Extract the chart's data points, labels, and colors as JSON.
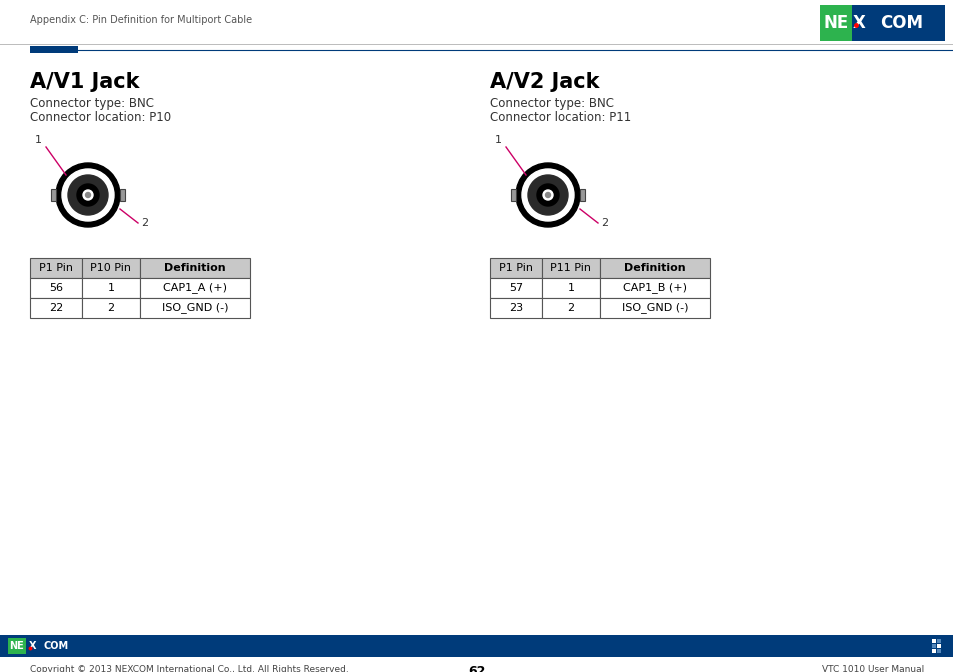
{
  "page_header_text": "Appendix C: Pin Definition for Multiport Cable",
  "left_title": "A/V1 Jack",
  "left_connector_type": "Connector type: BNC",
  "left_connector_location": "Connector location: P10",
  "right_title": "A/V2 Jack",
  "right_connector_type": "Connector type: BNC",
  "right_connector_location": "Connector location: P11",
  "left_table_headers": [
    "P1 Pin",
    "P10 Pin",
    "Definition"
  ],
  "left_table_rows": [
    [
      "56",
      "1",
      "CAP1_A (+)"
    ],
    [
      "22",
      "2",
      "ISO_GND (-)"
    ]
  ],
  "right_table_headers": [
    "P1 Pin",
    "P11 Pin",
    "Definition"
  ],
  "right_table_rows": [
    [
      "57",
      "1",
      "CAP1_B (+)"
    ],
    [
      "23",
      "2",
      "ISO_GND (-)"
    ]
  ],
  "footer_bar_color": "#003b7a",
  "footer_page_num": "62",
  "footer_left_text": "Copyright © 2013 NEXCOM International Co., Ltd. All Rights Reserved.",
  "footer_right_text": "VTC 1010 User Manual",
  "background_color": "#ffffff",
  "logo_green": "#2db34e",
  "logo_blue": "#003b7a",
  "accent_blue": "#003b7a",
  "table_header_bg": "#c8c8c8",
  "pin_line_color": "#cc0066"
}
